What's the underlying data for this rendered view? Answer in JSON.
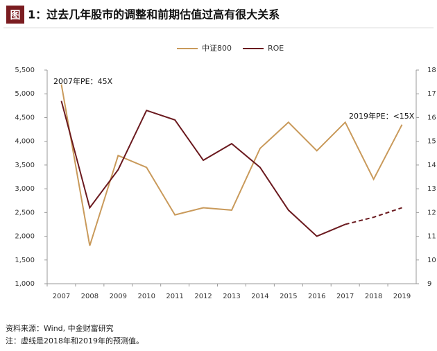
{
  "header": {
    "badge": "图",
    "title": "1：过去几年股市的调整和前期估值过高有很大关系"
  },
  "chart_data": {
    "type": "line",
    "categories": [
      "2007",
      "2008",
      "2009",
      "2010",
      "2011",
      "2012",
      "2013",
      "2014",
      "2015",
      "2016",
      "2017",
      "2018",
      "2019"
    ],
    "series": [
      {
        "name": "中证800",
        "color": "#c99a5b",
        "axis": "y",
        "values": [
          5200,
          1800,
          3700,
          3450,
          2450,
          2600,
          2550,
          3850,
          4400,
          3800,
          4400,
          3200,
          4350
        ]
      },
      {
        "name": "ROE",
        "color": "#6b1a1f",
        "axis": "y2",
        "values": [
          16.7,
          12.2,
          13.8,
          16.3,
          15.9,
          14.2,
          14.9,
          13.9,
          12.1,
          11.0,
          11.5,
          11.8,
          12.2
        ],
        "dashed": [
          false,
          false,
          false,
          false,
          false,
          false,
          false,
          false,
          false,
          false,
          false,
          true,
          true
        ]
      }
    ],
    "ylim": [
      1000,
      5500
    ],
    "yticks": [
      {
        "value": 1000,
        "label": "1,000"
      },
      {
        "value": 1500,
        "label": "1,500"
      },
      {
        "value": 2000,
        "label": "2,000"
      },
      {
        "value": 2500,
        "label": "2,500"
      },
      {
        "value": 3000,
        "label": "3,000"
      },
      {
        "value": 3500,
        "label": "3,500"
      },
      {
        "value": 4000,
        "label": "4,000"
      },
      {
        "value": 4500,
        "label": "4,500"
      },
      {
        "value": 5000,
        "label": "5,000"
      },
      {
        "value": 5500,
        "label": "5,500"
      }
    ],
    "y2lim": [
      9,
      18
    ],
    "y2ticks": [
      9,
      10,
      11,
      12,
      13,
      14,
      15,
      16,
      17,
      18
    ],
    "annotations": [
      "2007年PE：45X",
      "2019年PE：<15X"
    ],
    "legend": "top"
  },
  "footer": {
    "source": "资料来源：Wind, 中金财富研究",
    "note": "注：虚线是2018年和2019年的预测值。"
  }
}
